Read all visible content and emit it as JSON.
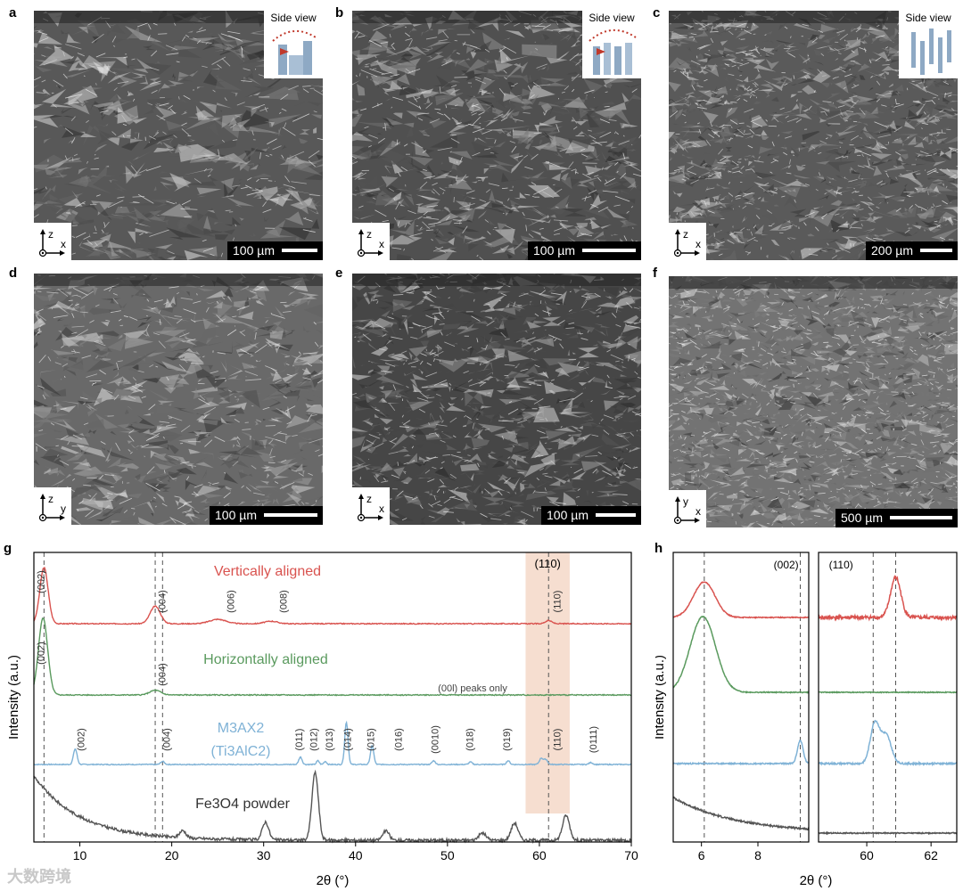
{
  "panels": {
    "a": {
      "letter": "a",
      "scale": "100 µm",
      "inset": "Side view",
      "axis_v": "z",
      "axis_h": "x"
    },
    "b": {
      "letter": "b",
      "scale": "100 µm",
      "inset": "Side view",
      "axis_v": "z",
      "axis_h": "x"
    },
    "c": {
      "letter": "c",
      "scale": "200 µm",
      "inset": "Side view",
      "axis_v": "z",
      "axis_h": "x"
    },
    "d": {
      "letter": "d",
      "scale": "100 µm",
      "axis_v": "z",
      "axis_h": "y"
    },
    "e": {
      "letter": "e",
      "scale": "100 µm",
      "axis_v": "z",
      "axis_h": "x"
    },
    "f": {
      "letter": "f",
      "scale": "500 µm",
      "axis_v": "y",
      "axis_h": "x"
    },
    "g": {
      "letter": "g"
    },
    "h": {
      "letter": "h"
    }
  },
  "watermark": "大数跨境",
  "chart_data": [
    {
      "type": "line",
      "panel": "g",
      "xlabel": "2θ (°)",
      "ylabel": "Intensity (a.u.)",
      "xlim": [
        5,
        70
      ],
      "xticks": [
        10,
        20,
        30,
        40,
        50,
        60,
        70
      ],
      "vlines": [
        6.1,
        18.2,
        19.0,
        61.0
      ],
      "highlight_range": [
        58.5,
        63.3
      ],
      "highlight_label": "(110)",
      "series": [
        {
          "name": "Vertically aligned",
          "color": "#d9534f",
          "peaks": [
            {
              "x": 6.1,
              "h": 0.9,
              "w": 0.45
            },
            {
              "x": 18.2,
              "h": 0.28,
              "w": 0.55
            },
            {
              "x": 25.0,
              "h": 0.07,
              "w": 0.9
            },
            {
              "x": 30.8,
              "h": 0.04,
              "w": 0.7
            },
            {
              "x": 61.0,
              "h": 0.05,
              "w": 0.35
            }
          ],
          "labels": [
            {
              "x": 6.1,
              "t": "(002)"
            },
            {
              "x": 19.3,
              "t": "(004)"
            },
            {
              "x": 26.8,
              "t": "(006)"
            },
            {
              "x": 32.5,
              "t": "(008)"
            },
            {
              "x": 62.3,
              "t": "(110)"
            }
          ]
        },
        {
          "name": "Horizontally aligned",
          "color": "#5a9a5e",
          "peaks": [
            {
              "x": 6.0,
              "h": 1.15,
              "w": 0.5
            },
            {
              "x": 18.2,
              "h": 0.07,
              "w": 0.6
            }
          ],
          "labels": [
            {
              "x": 6.1,
              "t": "(002)"
            },
            {
              "x": 19.3,
              "t": "(004)"
            }
          ],
          "note": "(00l) peaks only"
        },
        {
          "name": "M3AX2",
          "name2": "(Ti3AlC2)",
          "color": "#7fb2d6",
          "peaks": [
            {
              "x": 9.5,
              "h": 0.25,
              "w": 0.2
            },
            {
              "x": 19.0,
              "h": 0.05,
              "w": 0.2
            },
            {
              "x": 34.0,
              "h": 0.12,
              "w": 0.18
            },
            {
              "x": 35.9,
              "h": 0.06,
              "w": 0.15
            },
            {
              "x": 36.7,
              "h": 0.05,
              "w": 0.15
            },
            {
              "x": 39.0,
              "h": 0.68,
              "w": 0.18
            },
            {
              "x": 41.8,
              "h": 0.3,
              "w": 0.18
            },
            {
              "x": 48.5,
              "h": 0.06,
              "w": 0.18
            },
            {
              "x": 52.5,
              "h": 0.04,
              "w": 0.18
            },
            {
              "x": 56.6,
              "h": 0.06,
              "w": 0.18
            },
            {
              "x": 60.2,
              "h": 0.1,
              "w": 0.2
            },
            {
              "x": 60.7,
              "h": 0.08,
              "w": 0.2
            },
            {
              "x": 65.6,
              "h": 0.03,
              "w": 0.2
            }
          ],
          "labels": [
            {
              "x": 10.5,
              "t": "(002)"
            },
            {
              "x": 19.8,
              "t": "(004)"
            },
            {
              "x": 34.2,
              "t": "(011)"
            },
            {
              "x": 35.8,
              "t": "(012)"
            },
            {
              "x": 37.5,
              "t": "(013)"
            },
            {
              "x": 39.5,
              "t": "(014)"
            },
            {
              "x": 42.0,
              "t": "(015)"
            },
            {
              "x": 45.0,
              "t": "(016)"
            },
            {
              "x": 49.0,
              "t": "(0010)"
            },
            {
              "x": 52.8,
              "t": "(018)"
            },
            {
              "x": 56.8,
              "t": "(019)"
            },
            {
              "x": 62.3,
              "t": "(110)"
            },
            {
              "x": 66.2,
              "t": "(0111)"
            }
          ]
        },
        {
          "name": "Fe3O4 powder",
          "color": "#555555",
          "peaks": [
            {
              "x": 21.2,
              "h": 0.1,
              "w": 0.35
            },
            {
              "x": 30.2,
              "h": 0.25,
              "w": 0.35
            },
            {
              "x": 35.6,
              "h": 0.95,
              "w": 0.35
            },
            {
              "x": 43.3,
              "h": 0.13,
              "w": 0.35
            },
            {
              "x": 53.8,
              "h": 0.1,
              "w": 0.4
            },
            {
              "x": 57.3,
              "h": 0.24,
              "w": 0.38
            },
            {
              "x": 62.9,
              "h": 0.35,
              "w": 0.38
            }
          ]
        }
      ]
    },
    {
      "type": "line",
      "panel": "h-left",
      "xlabel": "2θ (°)",
      "ylabel": "Intensity (a.u.)",
      "xlim": [
        5,
        9.8
      ],
      "xticks": [
        6,
        8
      ],
      "vlines": [
        6.1,
        9.5
      ],
      "annotation": "(002)",
      "series": [
        {
          "name": "Vertically aligned",
          "peak": 6.1
        },
        {
          "name": "Horizontally aligned",
          "peak": 6.05
        },
        {
          "name": "M3AX2",
          "peak": 9.5
        },
        {
          "name": "Fe3O4 powder"
        }
      ]
    },
    {
      "type": "line",
      "panel": "h-right",
      "xlim": [
        58.5,
        62.8
      ],
      "xticks": [
        60,
        62
      ],
      "vlines": [
        60.2,
        60.9
      ],
      "annotation": "(110)",
      "series": [
        {
          "name": "Vertically aligned",
          "peak": 60.9
        },
        {
          "name": "Horizontally aligned"
        },
        {
          "name": "M3AX2",
          "peak": 60.3
        },
        {
          "name": "Fe3O4 powder"
        }
      ]
    }
  ]
}
